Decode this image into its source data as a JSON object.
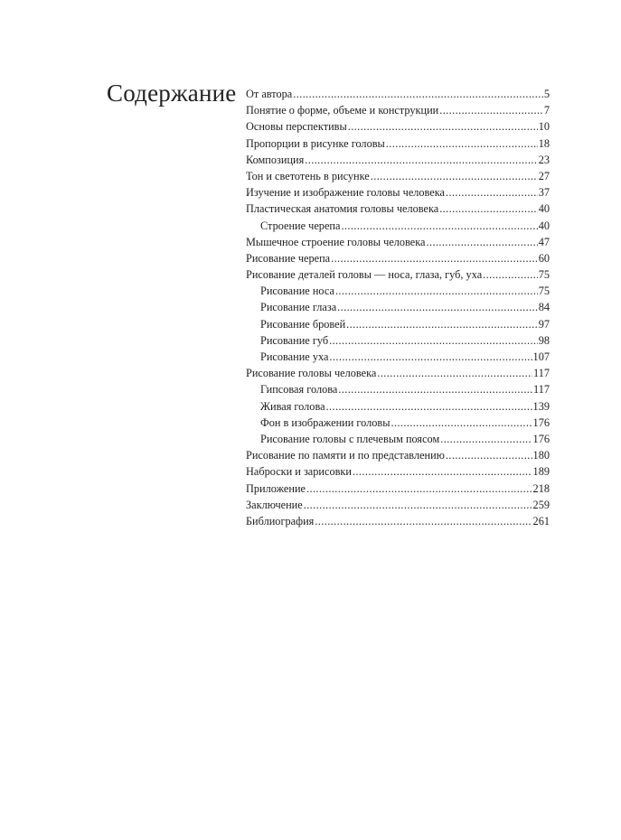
{
  "title": "Содержание",
  "entries": [
    {
      "label": "От автора",
      "page": "5",
      "level": 0
    },
    {
      "label": "Понятие о форме, объеме и конструкции",
      "page": "7",
      "level": 0
    },
    {
      "label": "Основы перспективы",
      "page": "10",
      "level": 0
    },
    {
      "label": "Пропорции в рисунке головы",
      "page": "18",
      "level": 0
    },
    {
      "label": "Композиция",
      "page": "23",
      "level": 0
    },
    {
      "label": "Тон и светотень в рисунке",
      "page": "27",
      "level": 0
    },
    {
      "label": "Изучение и изображение головы человека",
      "page": "37",
      "level": 0
    },
    {
      "label": "Пластическая анатомия головы человека",
      "page": "40",
      "level": 0
    },
    {
      "label": "Строение черепа",
      "page": "40",
      "level": 1
    },
    {
      "label": "Мышечное строение головы человека",
      "page": "47",
      "level": 0
    },
    {
      "label": "Рисование черепа",
      "page": "60",
      "level": 0
    },
    {
      "label": "Рисование деталей головы — носа, глаза,  губ,  уха",
      "page": "75",
      "level": 0
    },
    {
      "label": "Рисование носа",
      "page": "75",
      "level": 1
    },
    {
      "label": "Рисование глаза",
      "page": "84",
      "level": 1
    },
    {
      "label": "Рисование бровей",
      "page": "97",
      "level": 1
    },
    {
      "label": "Рисование губ",
      "page": "98",
      "level": 1
    },
    {
      "label": "Рисование уха",
      "page": "107",
      "level": 1
    },
    {
      "label": "Рисование головы человека",
      "page": "117",
      "level": 0
    },
    {
      "label": "Гипсовая голова",
      "page": "117",
      "level": 1
    },
    {
      "label": "Живая голова",
      "page": "139",
      "level": 1
    },
    {
      "label": "Фон в изображении головы",
      "page": "176",
      "level": 1
    },
    {
      "label": "Рисование головы с плечевым поясом",
      "page": "176",
      "level": 1
    },
    {
      "label": "Рисование по памяти и по представлению",
      "page": "180",
      "level": 0
    },
    {
      "label": "Наброски и зарисовки",
      "page": "189",
      "level": 0
    },
    {
      "label": "Приложение",
      "page": "218",
      "level": 0
    },
    {
      "label": "Заключение",
      "page": "259",
      "level": 0
    },
    {
      "label": "Библиография",
      "page": "261",
      "level": 0
    }
  ]
}
